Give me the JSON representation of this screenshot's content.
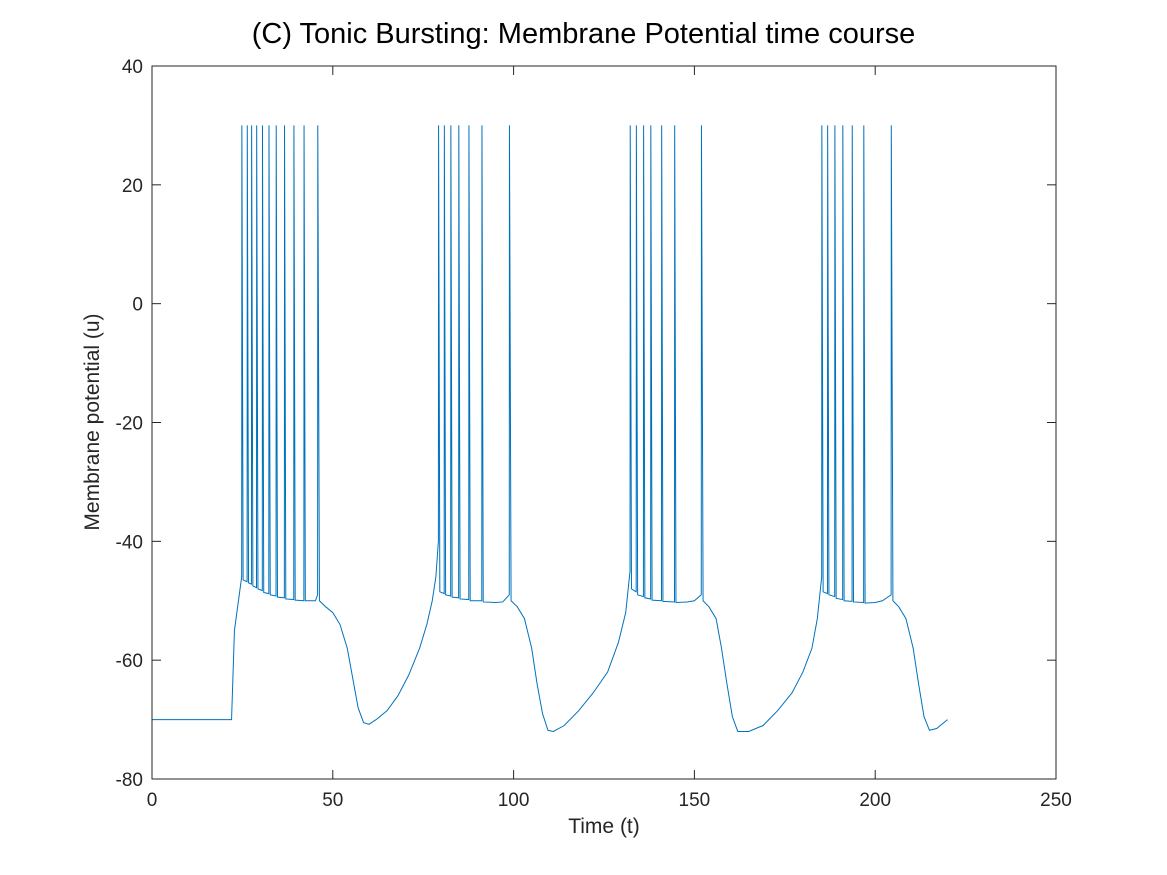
{
  "chart_data": {
    "type": "line",
    "title": "(C) Tonic Bursting: Membrane Potential time course",
    "xlabel": "Time (t)",
    "ylabel": "Membrane potential (u)",
    "xlim": [
      0,
      250
    ],
    "ylim": [
      -80,
      40
    ],
    "x_ticks": [
      0,
      50,
      100,
      150,
      200,
      250
    ],
    "y_ticks": [
      -80,
      -60,
      -40,
      -20,
      0,
      20,
      40
    ],
    "x_tick_labels": [
      "0",
      "50",
      "100",
      "150",
      "200",
      "250"
    ],
    "y_tick_labels": [
      "-80",
      "-60",
      "-40",
      "-20",
      "0",
      "20",
      "40"
    ],
    "grid": false,
    "box": true,
    "line_color": "#0072BD",
    "series": [
      {
        "x": [
          0,
          22.0,
          22.8,
          24.8,
          24.85,
          25.2,
          26.3,
          26.35,
          26.7,
          27.5,
          27.55,
          27.9,
          28.9,
          28.95,
          29.3,
          30.5,
          30.55,
          30.9,
          32.3,
          32.35,
          32.7,
          34.3,
          34.35,
          34.7,
          36.6,
          36.65,
          37.0,
          39.2,
          39.25,
          39.6,
          42.0,
          42.05,
          42.4,
          45.2,
          45.8,
          45.85,
          46.3,
          48,
          50,
          52,
          54,
          55.5,
          57,
          58.5,
          60,
          62,
          65,
          68,
          71,
          74,
          76,
          77.5,
          78.5,
          79.2,
          79.25,
          79.6,
          80.8,
          80.85,
          81.2,
          82.6,
          82.65,
          83.0,
          84.8,
          84.85,
          85.2,
          87.6,
          87.65,
          88.0,
          91.2,
          91.25,
          91.6,
          95,
          97,
          98.8,
          98.85,
          99.3,
          101,
          103,
          105,
          106.5,
          108,
          109.5,
          111,
          114,
          118,
          122,
          126,
          129,
          131,
          132.2,
          132.25,
          132.6,
          133.9,
          133.95,
          134.3,
          135.9,
          135.95,
          136.3,
          137.9,
          137.95,
          138.3,
          140.9,
          140.95,
          141.3,
          144.5,
          144.55,
          144.9,
          148,
          150,
          151.9,
          151.95,
          152.4,
          154,
          156,
          157.5,
          159,
          160.5,
          162,
          165,
          169,
          173,
          177,
          180,
          182.5,
          184.0,
          185.2,
          185.25,
          185.6,
          186.8,
          186.85,
          187.2,
          188.8,
          188.85,
          189.2,
          191.0,
          191.05,
          191.4,
          193.6,
          193.65,
          194.0,
          196.8,
          196.85,
          197.2,
          200,
          202,
          204.4,
          204.45,
          204.9,
          206.5,
          208.5,
          210.5,
          212,
          213.5,
          215,
          217,
          220
        ],
        "y": [
          -70,
          -70,
          -55,
          -46,
          30,
          -46.5,
          -46.8,
          30,
          -47.0,
          -47.2,
          30,
          -47.5,
          -47.8,
          30,
          -48.0,
          -48.3,
          30,
          -48.6,
          -48.8,
          30,
          -49.0,
          -49.2,
          30,
          -49.4,
          -49.5,
          30,
          -49.7,
          -49.8,
          30,
          -49.9,
          -50.0,
          30,
          -50.0,
          -50.0,
          -49.0,
          30,
          -50.0,
          -51.0,
          -52.0,
          -54.0,
          -58.0,
          -63.0,
          -68.0,
          -70.5,
          -70.8,
          -70.0,
          -68.5,
          -66.0,
          -62.5,
          -58.0,
          -54.0,
          -50.0,
          -46.0,
          -40.0,
          30,
          -48.5,
          -48.8,
          30,
          -49.0,
          -49.2,
          30,
          -49.4,
          -49.5,
          30,
          -49.7,
          -49.8,
          30,
          -50.0,
          -50.0,
          30,
          -50.2,
          -50.3,
          -50.2,
          -49.0,
          30,
          -50.0,
          -51.0,
          -53.0,
          -58.0,
          -64.0,
          -69.0,
          -71.8,
          -72.0,
          -71.0,
          -68.5,
          -65.5,
          -62.0,
          -57.0,
          -52.0,
          -45.0,
          30,
          -48.0,
          -48.5,
          30,
          -49.0,
          -49.3,
          30,
          -49.5,
          -49.7,
          30,
          -49.9,
          -50.0,
          30,
          -50.1,
          -50.2,
          30,
          -50.3,
          -50.2,
          -50.0,
          -49.0,
          30,
          -50.0,
          -51.0,
          -53.0,
          -58.0,
          -64.0,
          -69.5,
          -72.0,
          -72.0,
          -71.0,
          -68.5,
          -65.5,
          -62.0,
          -58.0,
          -53.0,
          -46.0,
          30,
          -48.5,
          -48.8,
          30,
          -49.0,
          -49.3,
          30,
          -49.6,
          -49.8,
          30,
          -50.0,
          -50.1,
          30,
          -50.2,
          -50.3,
          30,
          -50.4,
          -50.3,
          -50.0,
          -49.0,
          30,
          -50.0,
          -51.0,
          -53.0,
          -58.0,
          -64.0,
          -69.5,
          -71.8,
          -71.5,
          -70.0
        ]
      }
    ]
  }
}
